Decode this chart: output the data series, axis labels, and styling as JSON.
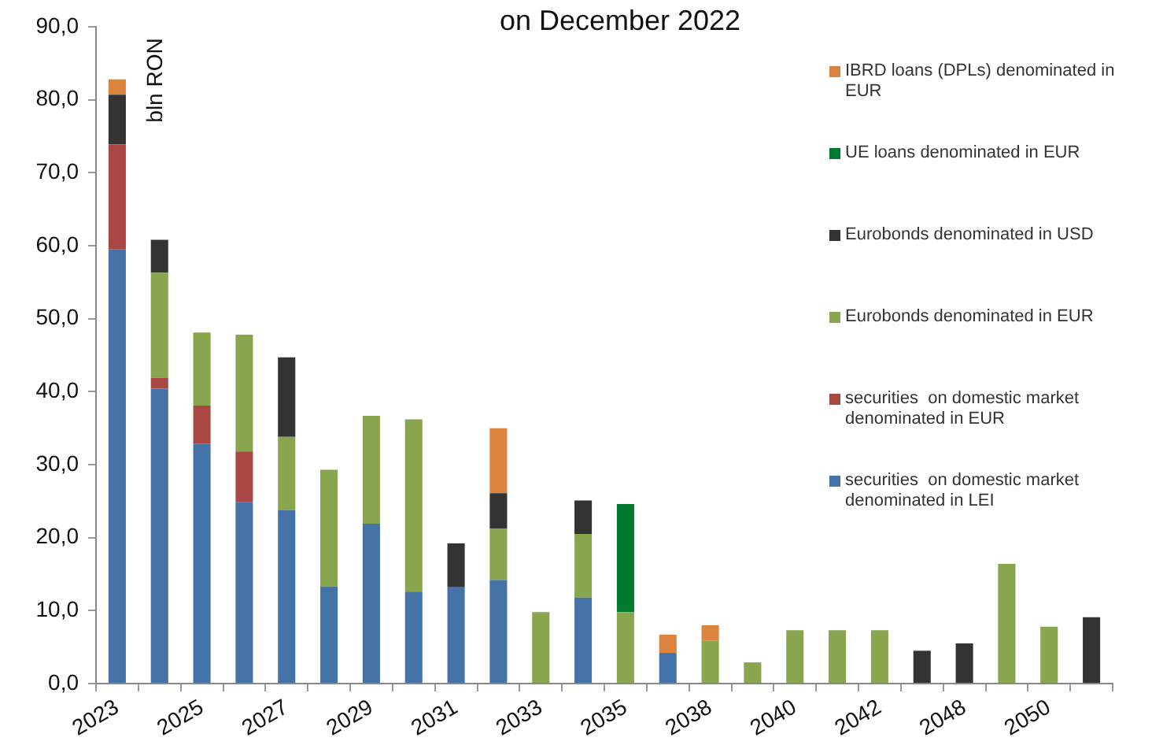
{
  "chart_data": {
    "type": "bar",
    "title": "on December 2022",
    "ylabel": "bln RON",
    "categories": [
      "2023",
      null,
      "2025",
      null,
      "2027",
      null,
      "2029",
      null,
      "2031",
      null,
      "2033",
      null,
      "2035",
      null,
      "2038",
      null,
      "2040",
      null,
      "2042",
      null,
      "2048",
      null,
      "2050",
      null
    ],
    "series": [
      {
        "name": "securities  on domestic market denominated in LEI",
        "color": "#4572a7",
        "values": [
          59.5,
          40.4,
          32.9,
          24.9,
          23.8,
          13.3,
          21.9,
          12.6,
          13.2,
          14.2,
          null,
          11.8,
          null,
          4.2,
          null,
          null,
          null,
          null,
          null,
          null,
          null,
          null,
          null,
          null
        ]
      },
      {
        "name": "securities  on domestic market denominated in EUR",
        "color": "#aa4643",
        "values": [
          14.4,
          1.5,
          5.2,
          6.9,
          null,
          null,
          null,
          null,
          null,
          null,
          null,
          null,
          null,
          null,
          null,
          null,
          null,
          null,
          null,
          null,
          null,
          null,
          null,
          null
        ]
      },
      {
        "name": "Eurobonds denominated in EUR",
        "color": "#89a54e",
        "values": [
          null,
          14.4,
          10,
          16,
          10,
          16,
          14.8,
          23.6,
          null,
          7,
          9.8,
          8.7,
          9.8,
          null,
          5.9,
          2.9,
          7.3,
          7.3,
          7.3,
          null,
          null,
          16.4,
          7.8,
          null
        ]
      },
      {
        "name": "Eurobonds denominated in USD",
        "color": "#333333",
        "values": [
          6.8,
          4.5,
          null,
          null,
          10.9,
          null,
          null,
          null,
          6,
          4.9,
          null,
          4.6,
          null,
          null,
          null,
          null,
          null,
          null,
          null,
          4.5,
          5.5,
          null,
          null,
          9.1
        ]
      },
      {
        "name": "UE loans denominated in EUR",
        "color": "#007a2e",
        "values": [
          null,
          null,
          null,
          null,
          null,
          null,
          null,
          null,
          null,
          null,
          null,
          null,
          14.8,
          null,
          null,
          null,
          null,
          null,
          null,
          null,
          null,
          null,
          null,
          null
        ]
      },
      {
        "name": "IBRD loans (DPLs) denominated in EUR",
        "color": "#db843d",
        "values": [
          2.1,
          null,
          null,
          null,
          null,
          null,
          null,
          null,
          null,
          8.9,
          null,
          null,
          null,
          2.5,
          2.1,
          null,
          null,
          null,
          null,
          null,
          null,
          null,
          null,
          null
        ]
      }
    ],
    "stacked": true,
    "ylim": [
      0,
      90
    ],
    "yticks": [
      {
        "value": 0,
        "label": "0,0"
      },
      {
        "value": 10,
        "label": "10,0"
      },
      {
        "value": 20,
        "label": "20,0"
      },
      {
        "value": 30,
        "label": "30,0"
      },
      {
        "value": 40,
        "label": "40,0"
      },
      {
        "value": 50,
        "label": "50,0"
      },
      {
        "value": 60,
        "label": "60,0"
      },
      {
        "value": 70,
        "label": "70,0"
      },
      {
        "value": 80,
        "label": "80,0"
      },
      {
        "value": 90,
        "label": "90,0"
      }
    ],
    "grid": false,
    "legend": "top right"
  }
}
